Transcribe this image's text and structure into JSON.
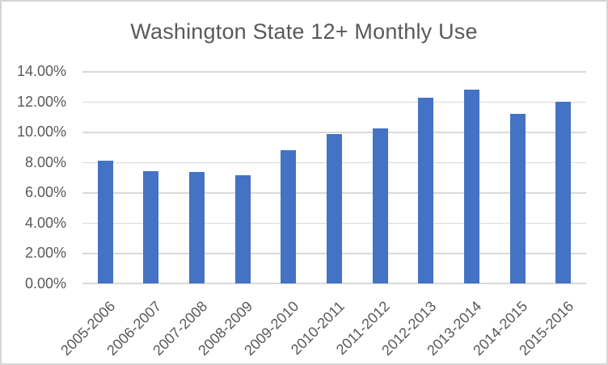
{
  "window": {
    "background": "#FFFFFF",
    "border_color": "#D4D4D4"
  },
  "chart_data": {
    "type": "bar",
    "title": "Washington State 12+ Monthly Use",
    "categories": [
      "2005-2006",
      "2006-2007",
      "2007-2008",
      "2008-2009",
      "2009-2010",
      "2010-2011",
      "2011-2012",
      "2012-2013",
      "2013-2014",
      "2014-2015",
      "2015-2016"
    ],
    "values": [
      8.1,
      7.4,
      7.35,
      7.15,
      8.8,
      9.85,
      10.2,
      12.25,
      12.8,
      11.2,
      12.0
    ],
    "value_unit": "percent",
    "y_ticks": [
      "0.00%",
      "2.00%",
      "4.00%",
      "6.00%",
      "8.00%",
      "10.00%",
      "12.00%",
      "14.00%"
    ],
    "ylim": [
      0,
      14
    ],
    "xlabel": "",
    "ylabel": "",
    "grid": "horizontal",
    "legend": "none",
    "x_label_rotation_deg": -45,
    "bar_color": "#4472C4",
    "gridline_color": "#D9D9D9",
    "axis_line_color": "#D9D9D9",
    "text_color": "#595959"
  }
}
